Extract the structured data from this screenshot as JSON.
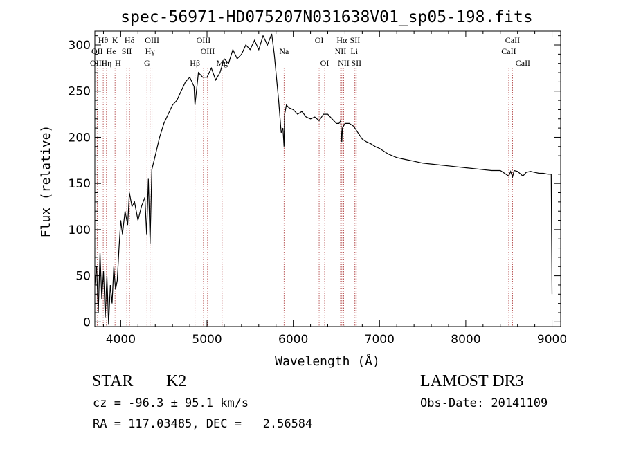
{
  "chart_data": {
    "type": "line",
    "title": "spec-56971-HD075207N031638V01_sp05-198.fits",
    "xlabel": "Wavelength (Å)",
    "ylabel": "Flux (relative)",
    "xlim": [
      3700,
      9100
    ],
    "ylim": [
      -5,
      315
    ],
    "x_ticks": [
      4000,
      5000,
      6000,
      7000,
      8000,
      9000
    ],
    "y_ticks": [
      0,
      50,
      100,
      150,
      200,
      250,
      300
    ],
    "grid": false,
    "series": [
      {
        "x": [
          3700,
          3720,
          3740,
          3760,
          3780,
          3800,
          3820,
          3840,
          3860,
          3880,
          3900,
          3920,
          3940,
          3960,
          3980,
          4000,
          4020,
          4050,
          4080,
          4100,
          4130,
          4160,
          4200,
          4240,
          4280,
          4300,
          4320,
          4340,
          4360,
          4400,
          4450,
          4500,
          4550,
          4600,
          4650,
          4700,
          4750,
          4800,
          4850,
          4860,
          4900,
          4950,
          5000,
          5050,
          5100,
          5150,
          5200,
          5250,
          5300,
          5350,
          5400,
          5450,
          5500,
          5550,
          5600,
          5650,
          5700,
          5750,
          5780,
          5800,
          5830,
          5860,
          5880,
          5893,
          5900,
          5920,
          5950,
          6000,
          6050,
          6100,
          6150,
          6200,
          6250,
          6300,
          6350,
          6400,
          6450,
          6500,
          6530,
          6550,
          6563,
          6570,
          6600,
          6650,
          6700,
          6750,
          6800,
          6850,
          6900,
          6950,
          7000,
          7100,
          7200,
          7300,
          7400,
          7500,
          7600,
          7700,
          7800,
          7900,
          8000,
          8100,
          8200,
          8300,
          8400,
          8498,
          8520,
          8542,
          8560,
          8600,
          8662,
          8700,
          8750,
          8800,
          8850,
          8900,
          8950,
          8990,
          9000
        ],
        "y": [
          40,
          60,
          10,
          75,
          25,
          55,
          5,
          50,
          -3,
          40,
          20,
          60,
          35,
          45,
          80,
          110,
          95,
          120,
          105,
          140,
          125,
          130,
          110,
          125,
          135,
          95,
          155,
          85,
          165,
          180,
          200,
          215,
          225,
          235,
          240,
          250,
          260,
          265,
          255,
          235,
          270,
          265,
          265,
          275,
          262,
          270,
          285,
          280,
          295,
          285,
          290,
          300,
          295,
          305,
          295,
          310,
          300,
          312,
          290,
          270,
          240,
          205,
          210,
          190,
          225,
          235,
          232,
          230,
          225,
          228,
          222,
          220,
          222,
          218,
          225,
          225,
          220,
          215,
          215,
          218,
          195,
          210,
          215,
          215,
          212,
          205,
          198,
          195,
          193,
          190,
          188,
          182,
          178,
          176,
          174,
          172,
          171,
          170,
          169,
          168,
          167,
          166,
          165,
          164,
          164,
          158,
          163,
          157,
          164,
          163,
          158,
          162,
          163,
          162,
          161,
          161,
          160,
          160,
          30
        ]
      }
    ],
    "emission_lines": [
      {
        "label": "Hθ",
        "w": 3797,
        "row": 0
      },
      {
        "label": "K",
        "w": 3934,
        "row": 0
      },
      {
        "label": "Hδ",
        "w": 4102,
        "row": 0
      },
      {
        "label": "OIII",
        "w": 4363,
        "row": 0
      },
      {
        "label": "OIII",
        "w": 4959,
        "row": 0
      },
      {
        "label": "OI",
        "w": 6300,
        "row": 0
      },
      {
        "label": "Hα",
        "w": 6563,
        "row": 0
      },
      {
        "label": "SII",
        "w": 6716,
        "row": 0
      },
      {
        "label": "CaII",
        "w": 8542,
        "row": 0
      },
      {
        "label": "OII",
        "w": 3727,
        "row": 1
      },
      {
        "label": "He",
        "w": 3889,
        "row": 1
      },
      {
        "label": "SII",
        "w": 4070,
        "row": 1
      },
      {
        "label": "Hγ",
        "w": 4340,
        "row": 1
      },
      {
        "label": "OIII",
        "w": 5007,
        "row": 1
      },
      {
        "label": "NII",
        "w": 6548,
        "row": 1
      },
      {
        "label": "Li",
        "w": 6707,
        "row": 1
      },
      {
        "label": "CaII",
        "w": 8498,
        "row": 1
      },
      {
        "label": "Na",
        "w": 5893,
        "row": 1
      },
      {
        "label": "OIII",
        "w": 3727,
        "row": 2
      },
      {
        "label": "Hη",
        "w": 3835,
        "row": 2
      },
      {
        "label": "H",
        "w": 3968,
        "row": 2
      },
      {
        "label": "G",
        "w": 4304,
        "row": 2
      },
      {
        "label": "Hβ",
        "w": 4861,
        "row": 2
      },
      {
        "label": "Mg",
        "w": 5175,
        "row": 2
      },
      {
        "label": "OI",
        "w": 6364,
        "row": 2
      },
      {
        "label": "NII",
        "w": 6584,
        "row": 2
      },
      {
        "label": "SII",
        "w": 6731,
        "row": 2
      },
      {
        "label": "CaII",
        "w": 8662,
        "row": 2
      }
    ]
  },
  "info": {
    "object": "STAR",
    "subclass": "K2",
    "survey": "LAMOST DR3",
    "cz": "cz = -96.3 ± 95.1 km/s",
    "obs_date": "Obs-Date: 20141109",
    "coords": "RA = 117.03485, DEC =   2.56584"
  }
}
